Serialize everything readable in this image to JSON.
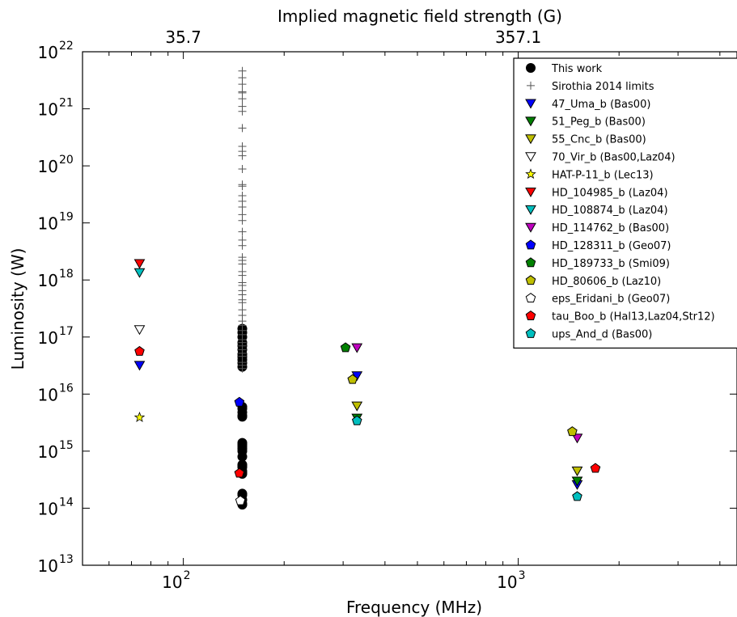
{
  "chart_data": {
    "type": "scatter",
    "title": "Implied magnetic field strength (G)",
    "xlabel": "Frequency (MHz)",
    "ylabel": "Luminosity (W)",
    "xscale": "log",
    "yscale": "log",
    "xlim": [
      50,
      4500
    ],
    "ylim": [
      10000000000000.0,
      1e+22
    ],
    "grid": false,
    "legend_position": "top-right",
    "x_ticks": [
      {
        "value": 100,
        "base": "10",
        "exp": "2"
      },
      {
        "value": 1000,
        "base": "10",
        "exp": "3"
      }
    ],
    "y_ticks": [
      {
        "value": 10000000000000.0,
        "base": "10",
        "exp": "13"
      },
      {
        "value": 100000000000000.0,
        "base": "10",
        "exp": "14"
      },
      {
        "value": 1000000000000000.0,
        "base": "10",
        "exp": "15"
      },
      {
        "value": 1e+16,
        "base": "10",
        "exp": "16"
      },
      {
        "value": 1e+17,
        "base": "10",
        "exp": "17"
      },
      {
        "value": 1e+18,
        "base": "10",
        "exp": "18"
      },
      {
        "value": 1e+19,
        "base": "10",
        "exp": "19"
      },
      {
        "value": 1e+20,
        "base": "10",
        "exp": "20"
      },
      {
        "value": 1e+21,
        "base": "10",
        "exp": "21"
      },
      {
        "value": 1e+22,
        "base": "10",
        "exp": "22"
      }
    ],
    "top_ticks": [
      {
        "x": 100,
        "label": "35.7"
      },
      {
        "x": 1000,
        "label": "357.1"
      }
    ],
    "series": [
      {
        "name": "This work",
        "marker": "circle",
        "color": "#000000",
        "x": [
          150,
          150,
          150,
          150,
          150,
          150,
          150,
          150,
          150,
          150,
          150,
          150,
          150,
          150,
          150,
          150,
          150,
          150,
          150,
          150,
          150,
          150,
          150,
          150,
          150,
          150,
          150,
          150,
          150,
          150,
          150,
          150,
          150
        ],
        "y": [
          1.4e+17,
          1.2e+17,
          1e+17,
          8e+16,
          7e+16,
          6e+16,
          5e+16,
          4.5e+16,
          4e+16,
          3.5e+16,
          3e+16,
          6000000000000000.0,
          5500000000000000.0,
          4800000000000000.0,
          4200000000000000.0,
          4000000000000000.0,
          1400000000000000.0,
          1300000000000000.0,
          1200000000000000.0,
          1100000000000000.0,
          1000000000000000.0,
          800000000000000.0,
          580000000000000.0,
          550000000000000.0,
          520000000000000.0,
          450000000000000.0,
          420000000000000.0,
          400000000000000.0,
          180000000000000.0,
          170000000000000.0,
          140000000000000.0,
          120000000000000.0,
          115000000000000.0
        ]
      },
      {
        "name": "Sirothia 2014 limits",
        "marker": "plus",
        "color": "#555555",
        "x": [
          150,
          150,
          150,
          150,
          150,
          150,
          150,
          150,
          150,
          150,
          150,
          150,
          150,
          150,
          150,
          150,
          150,
          150,
          150,
          150,
          150,
          150,
          150,
          150,
          150,
          150,
          150,
          150,
          150,
          150,
          150,
          150,
          150,
          150,
          150,
          150,
          150,
          150,
          150,
          150,
          150,
          150,
          150,
          150,
          150,
          150,
          150,
          150,
          150
        ],
        "y": [
          4.6e+21,
          3.5e+21,
          2.7e+21,
          2e+21,
          1.9e+21,
          1.5e+21,
          1.1e+21,
          9e+20,
          4.6e+20,
          2.2e+20,
          1.8e+20,
          1.5e+20,
          8.8e+19,
          4.7e+19,
          4.4e+19,
          3e+19,
          2.4e+19,
          1.9e+19,
          1.4e+19,
          1.1e+19,
          7e+18,
          5e+18,
          4e+18,
          2.5e+18,
          2.2e+18,
          1.9e+18,
          1.4e+18,
          1.2e+18,
          9e+17,
          8e+17,
          6.5e+17,
          5.5e+17,
          4.5e+17,
          4e+17,
          3e+17,
          2.4e+17,
          1.9e+17,
          1.6e+17,
          1.3e+17,
          1.1e+17,
          9e+16,
          8e+16,
          7e+16,
          6e+16,
          5.2e+16,
          4.6e+16,
          3.6e+16,
          3.2e+16,
          2.8e+16
        ]
      },
      {
        "name": "47_Uma_b (Bas00)",
        "marker": "tri_down",
        "color": "#0000ff",
        "stroke": "#000000",
        "x": [
          74,
          330,
          1500
        ],
        "y": [
          3.2e+16,
          2.1e+16,
          260000000000000.0
        ]
      },
      {
        "name": "51_Peg_b (Bas00)",
        "marker": "tri_down",
        "color": "#008000",
        "stroke": "#000000",
        "x": [
          330,
          1500
        ],
        "y": [
          3800000000000000.0,
          300000000000000.0
        ]
      },
      {
        "name": "55_Cnc_b (Bas00)",
        "marker": "tri_down",
        "color": "#bfbf00",
        "stroke": "#000000",
        "x": [
          330,
          1500
        ],
        "y": [
          6200000000000000.0,
          450000000000000.0
        ]
      },
      {
        "name": "70_Vir_b (Bas00,Laz04)",
        "marker": "tri_down",
        "color": "#ffffff",
        "stroke": "#000000",
        "x": [
          74
        ],
        "y": [
          1.35e+17
        ]
      },
      {
        "name": "HAT-P-11_b (Lec13)",
        "marker": "star",
        "color": "#ffff00",
        "stroke": "#000000",
        "x": [
          74
        ],
        "y": [
          3900000000000000.0
        ]
      },
      {
        "name": "HD_104985_b (Laz04)",
        "marker": "tri_down",
        "color": "#ff0000",
        "stroke": "#000000",
        "x": [
          74
        ],
        "y": [
          1.95e+18
        ]
      },
      {
        "name": "HD_108874_b (Laz04)",
        "marker": "tri_down",
        "color": "#00bfbf",
        "stroke": "#000000",
        "x": [
          74
        ],
        "y": [
          1.35e+18
        ]
      },
      {
        "name": "HD_114762_b (Bas00)",
        "marker": "tri_down",
        "color": "#bf00bf",
        "stroke": "#000000",
        "x": [
          330,
          1500
        ],
        "y": [
          6.5e+16,
          1700000000000000.0
        ]
      },
      {
        "name": "HD_128311_b (Geo07)",
        "marker": "pentagon",
        "color": "#0000ff",
        "stroke": "#000000",
        "x": [
          147
        ],
        "y": [
          7200000000000000.0
        ]
      },
      {
        "name": "HD_189733_b (Smi09)",
        "marker": "pentagon",
        "color": "#008000",
        "stroke": "#000000",
        "x": [
          305
        ],
        "y": [
          6.5e+16
        ]
      },
      {
        "name": "HD_80606_b (Laz10)",
        "marker": "pentagon",
        "color": "#bfbf00",
        "stroke": "#000000",
        "x": [
          320,
          1450
        ],
        "y": [
          1.8e+16,
          2200000000000000.0
        ]
      },
      {
        "name": "eps_Eridani_b (Geo07)",
        "marker": "pentagon",
        "color": "#ffffff",
        "stroke": "#000000",
        "x": [
          148
        ],
        "y": [
          135000000000000.0
        ]
      },
      {
        "name": "tau_Boo_b (Hal13,Laz04,Str12)",
        "marker": "pentagon",
        "color": "#ff0000",
        "stroke": "#000000",
        "x": [
          74,
          147,
          1700
        ],
        "y": [
          5.6e+16,
          410000000000000.0,
          500000000000000.0
        ]
      },
      {
        "name": "ups_And_d (Bas00)",
        "marker": "pentagon",
        "color": "#00bfbf",
        "stroke": "#000000",
        "x": [
          330,
          1500
        ],
        "y": [
          3400000000000000.0,
          160000000000000.0
        ]
      }
    ]
  }
}
